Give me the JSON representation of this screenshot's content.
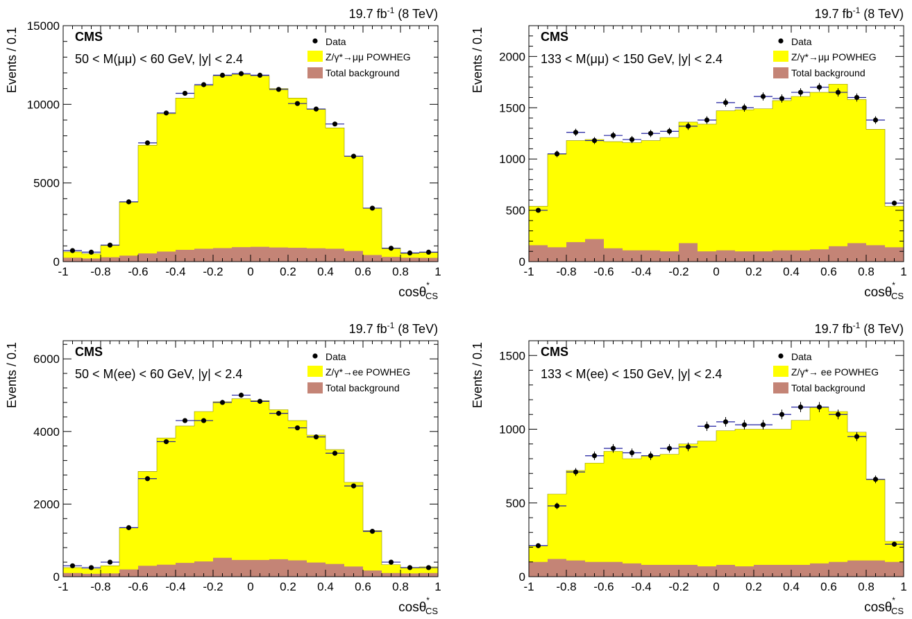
{
  "colors": {
    "signal": "#ffff00",
    "background": "#c48476",
    "data": "#000000",
    "xerr": "#1f1f9f"
  },
  "legend_labels": {
    "data": "Data",
    "background": "Total background"
  },
  "x_ticks": [
    "-1",
    "-0.8",
    "-0.6",
    "-0.4",
    "-0.2",
    "0",
    "0.2",
    "0.4",
    "0.6",
    "0.8",
    "1"
  ],
  "chart_data": [
    {
      "type": "bar",
      "experiment": "CMS",
      "lumi": "19.7 fb⁻¹ (8 TeV)",
      "selection": "50 < M(μμ) < 60 GeV, |y| < 2.4",
      "signal_label": "Z/γ*→μμ POWHEG",
      "xlabel": "cosθ*CS",
      "ylabel": "Events / 0.1",
      "xlim": [
        -1,
        1
      ],
      "ylim": [
        0,
        15000
      ],
      "yticks": [
        "0",
        "5000",
        "10000",
        "15000"
      ],
      "bin_edges": [
        -1,
        -0.9,
        -0.8,
        -0.7,
        -0.6,
        -0.5,
        -0.4,
        -0.3,
        -0.2,
        -0.1,
        0,
        0.1,
        0.2,
        0.3,
        0.4,
        0.5,
        0.6,
        0.7,
        0.8,
        0.9,
        1
      ],
      "signal_total": [
        620,
        500,
        1020,
        3800,
        7400,
        9400,
        10400,
        11200,
        11800,
        11900,
        11800,
        11000,
        10400,
        9700,
        8500,
        6700,
        3400,
        870,
        520,
        580
      ],
      "background": [
        250,
        200,
        280,
        380,
        520,
        640,
        750,
        820,
        860,
        920,
        940,
        900,
        880,
        850,
        820,
        680,
        420,
        300,
        250,
        240
      ],
      "data": [
        700,
        600,
        1050,
        3800,
        7550,
        9450,
        10700,
        11250,
        11850,
        11950,
        11850,
        10950,
        10050,
        9700,
        8750,
        6700,
        3400,
        850,
        550,
        600
      ]
    },
    {
      "type": "bar",
      "experiment": "CMS",
      "lumi": "19.7 fb⁻¹ (8 TeV)",
      "selection": "133 < M(μμ) < 150 GeV, |y| < 2.4",
      "signal_label": "Z/γ*→μμ POWHEG",
      "xlabel": "cosθ*CS",
      "ylabel": "Events / 0.1",
      "xlim": [
        -1,
        1
      ],
      "ylim": [
        0,
        2300
      ],
      "yticks": [
        "0",
        "500",
        "1000",
        "1500",
        "2000"
      ],
      "bin_edges": [
        -1,
        -0.9,
        -0.8,
        -0.7,
        -0.6,
        -0.5,
        -0.4,
        -0.3,
        -0.2,
        -0.1,
        0,
        0.1,
        0.2,
        0.3,
        0.4,
        0.5,
        0.6,
        0.7,
        0.8,
        0.9,
        1
      ],
      "signal_total": [
        540,
        1050,
        1180,
        1190,
        1170,
        1160,
        1180,
        1210,
        1360,
        1340,
        1470,
        1480,
        1490,
        1570,
        1610,
        1650,
        1730,
        1580,
        1290,
        540
      ],
      "background": [
        160,
        140,
        190,
        220,
        130,
        110,
        110,
        100,
        180,
        100,
        110,
        100,
        100,
        110,
        110,
        120,
        150,
        180,
        160,
        140
      ],
      "data": [
        500,
        1050,
        1260,
        1180,
        1230,
        1190,
        1250,
        1270,
        1320,
        1380,
        1550,
        1500,
        1610,
        1590,
        1650,
        1700,
        1650,
        1600,
        1380,
        570
      ]
    },
    {
      "type": "bar",
      "experiment": "CMS",
      "lumi": "19.7 fb⁻¹ (8 TeV)",
      "selection": "50 < M(ee) < 60 GeV, |y| < 2.4",
      "signal_label": "Z/γ*→ee POWHEG",
      "xlabel": "cosθ*CS",
      "ylabel": "Events / 0.1",
      "xlim": [
        -1,
        1
      ],
      "ylim": [
        0,
        6500
      ],
      "yticks": [
        "0",
        "2000",
        "4000",
        "6000"
      ],
      "bin_edges": [
        -1,
        -0.9,
        -0.8,
        -0.7,
        -0.6,
        -0.5,
        -0.4,
        -0.3,
        -0.2,
        -0.1,
        0,
        0.1,
        0.2,
        0.3,
        0.4,
        0.5,
        0.6,
        0.7,
        0.8,
        0.9,
        1
      ],
      "signal_total": [
        250,
        220,
        300,
        1350,
        2900,
        3820,
        4150,
        4550,
        4820,
        4900,
        4850,
        4600,
        4300,
        3900,
        3500,
        2600,
        1270,
        330,
        240,
        270
      ],
      "background": [
        100,
        80,
        90,
        200,
        300,
        330,
        380,
        420,
        520,
        460,
        460,
        480,
        450,
        390,
        350,
        280,
        170,
        100,
        90,
        100
      ],
      "data": [
        300,
        250,
        400,
        1350,
        2700,
        3720,
        4300,
        4300,
        4800,
        5000,
        4830,
        4500,
        4100,
        3850,
        3400,
        2500,
        1250,
        400,
        250,
        250
      ]
    },
    {
      "type": "bar",
      "experiment": "CMS",
      "lumi": "19.7 fb⁻¹ (8 TeV)",
      "selection": "133 < M(ee) < 150 GeV, |y| < 2.4",
      "signal_label": "Z/γ*→ ee POWHEG",
      "xlabel": "cosθ*CS",
      "ylabel": "Events / 0.1",
      "xlim": [
        -1,
        1
      ],
      "ylim": [
        0,
        1600
      ],
      "yticks": [
        "0",
        "500",
        "1000",
        "1500"
      ],
      "bin_edges": [
        -1,
        -0.9,
        -0.8,
        -0.7,
        -0.6,
        -0.5,
        -0.4,
        -0.3,
        -0.2,
        -0.1,
        0,
        0.1,
        0.2,
        0.3,
        0.4,
        0.5,
        0.6,
        0.7,
        0.8,
        0.9,
        1
      ],
      "signal_total": [
        210,
        560,
        720,
        770,
        850,
        800,
        820,
        830,
        900,
        920,
        990,
        1000,
        1000,
        1000,
        1060,
        1150,
        1120,
        980,
        660,
        240
      ],
      "background": [
        100,
        120,
        110,
        100,
        100,
        90,
        80,
        80,
        80,
        70,
        80,
        70,
        80,
        80,
        80,
        90,
        100,
        110,
        110,
        100
      ],
      "data": [
        210,
        480,
        710,
        820,
        870,
        840,
        820,
        870,
        880,
        1020,
        1050,
        1030,
        1030,
        1100,
        1150,
        1150,
        1100,
        950,
        660,
        220
      ]
    }
  ]
}
